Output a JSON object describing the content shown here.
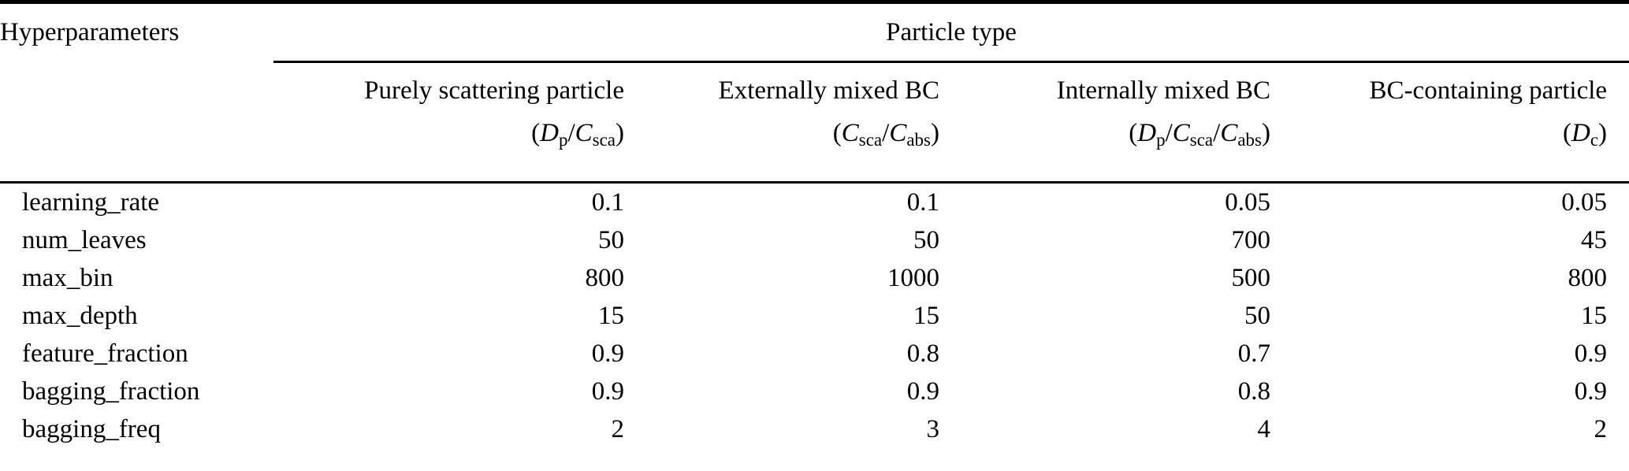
{
  "colors": {
    "text": "#000000",
    "rule": "#000000",
    "background": "#ffffff"
  },
  "table": {
    "corner_header": "Hyperparameters",
    "group_header": "Particle type",
    "columns": [
      {
        "name": "Purely scattering particle",
        "formula_plain": "(Dp/Csca)",
        "formula": [
          {
            "t": "("
          },
          {
            "t": "D",
            "s": "i"
          },
          {
            "t": "p",
            "s": "sub"
          },
          {
            "t": "/"
          },
          {
            "t": "C",
            "s": "i"
          },
          {
            "t": "sca",
            "s": "sub"
          },
          {
            "t": ")"
          }
        ]
      },
      {
        "name": "Externally mixed BC",
        "formula_plain": "(Csca/Cabs)",
        "formula": [
          {
            "t": "("
          },
          {
            "t": "C",
            "s": "i"
          },
          {
            "t": "sca",
            "s": "sub"
          },
          {
            "t": "/"
          },
          {
            "t": "C",
            "s": "i"
          },
          {
            "t": "abs",
            "s": "sub"
          },
          {
            "t": ")"
          }
        ]
      },
      {
        "name": "Internally mixed BC",
        "formula_plain": "(Dp/Csca/Cabs)",
        "formula": [
          {
            "t": "("
          },
          {
            "t": "D",
            "s": "i"
          },
          {
            "t": "p",
            "s": "sub"
          },
          {
            "t": "/"
          },
          {
            "t": "C",
            "s": "i"
          },
          {
            "t": "sca",
            "s": "sub"
          },
          {
            "t": "/"
          },
          {
            "t": "C",
            "s": "i"
          },
          {
            "t": "abs",
            "s": "sub"
          },
          {
            "t": ")"
          }
        ]
      },
      {
        "name": "BC-containing particle",
        "formula_plain": "(Dc)",
        "formula": [
          {
            "t": "("
          },
          {
            "t": "D",
            "s": "i"
          },
          {
            "t": "c",
            "s": "sub"
          },
          {
            "t": ")"
          }
        ]
      }
    ],
    "rows": [
      {
        "label": "learning_rate",
        "values": [
          "0.1",
          "0.1",
          "0.05",
          "0.05"
        ]
      },
      {
        "label": "num_leaves",
        "values": [
          "50",
          "50",
          "700",
          "45"
        ]
      },
      {
        "label": "max_bin",
        "values": [
          "800",
          "1000",
          "500",
          "800"
        ]
      },
      {
        "label": "max_depth",
        "values": [
          "15",
          "15",
          "50",
          "15"
        ]
      },
      {
        "label": "feature_fraction",
        "values": [
          "0.9",
          "0.8",
          "0.7",
          "0.9"
        ]
      },
      {
        "label": "bagging_fraction",
        "values": [
          "0.9",
          "0.9",
          "0.8",
          "0.9"
        ]
      },
      {
        "label": "bagging_freq",
        "values": [
          "2",
          "3",
          "4",
          "2"
        ]
      }
    ]
  }
}
